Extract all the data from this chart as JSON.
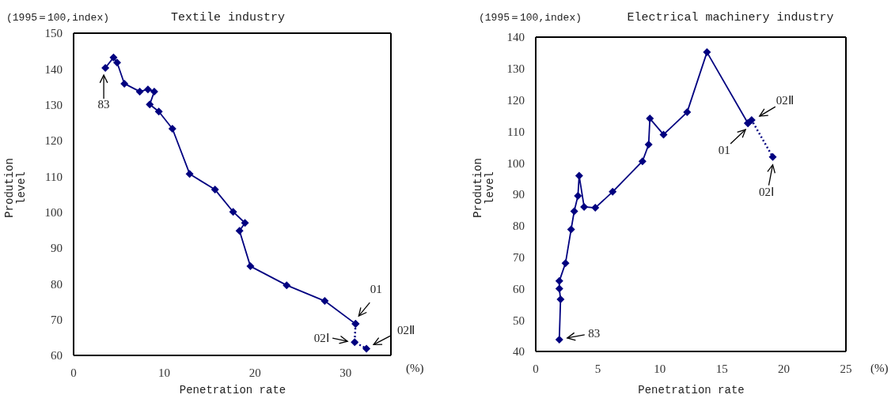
{
  "chart_data": [
    {
      "type": "line",
      "title": "Textile industry",
      "xlabel": "Penetration rate",
      "ylabel": "Prodution level",
      "xlim": [
        0,
        35
      ],
      "xticks": [
        0,
        10,
        20,
        30
      ],
      "ylim": [
        60,
        150
      ],
      "yticks": [
        60,
        70,
        80,
        90,
        100,
        110,
        120,
        130,
        140,
        150
      ],
      "marker": "diamond",
      "series": [
        {
          "color": "#000080",
          "line_style": "solid",
          "x": [
            3.5,
            4.4,
            4.8,
            5.6,
            7.3,
            8.2,
            8.9,
            8.4,
            9.4,
            10.9,
            12.8,
            15.6,
            17.6,
            18.9,
            18.3,
            19.5,
            23.5,
            27.7,
            31.1
          ],
          "values": [
            140.3,
            143.2,
            141.8,
            135.9,
            133.7,
            134.3,
            133.7,
            130.1,
            128.1,
            123.3,
            110.7,
            106.3,
            100.1,
            97.0,
            94.8,
            84.9,
            79.6,
            75.2,
            68.8
          ]
        },
        {
          "color": "#000080",
          "line_style": "dotted",
          "x": [
            31.1,
            31.0,
            32.3
          ],
          "values": [
            68.8,
            63.7,
            61.9
          ]
        }
      ],
      "annotations": [
        "(1995＝100,index)",
        "(%)",
        {
          "text": "83",
          "x": 3.5,
          "y": 140.3
        },
        {
          "text": "01",
          "x": 31.1,
          "y": 68.8
        },
        {
          "text": "02Ⅰ",
          "x": 31.0,
          "y": 63.7
        },
        {
          "text": "02Ⅱ",
          "x": 32.3,
          "y": 61.9
        }
      ]
    },
    {
      "type": "line",
      "title": "Electrical machinery industry",
      "xlabel": "Penetration rate",
      "ylabel": "Prodution level",
      "xlim": [
        0,
        25
      ],
      "xticks": [
        0,
        5,
        10,
        15,
        20,
        25
      ],
      "ylim": [
        40,
        140
      ],
      "yticks": [
        40,
        50,
        60,
        70,
        80,
        90,
        100,
        110,
        120,
        130,
        140
      ],
      "marker": "diamond",
      "series": [
        {
          "color": "#000080",
          "line_style": "solid",
          "x": [
            1.9,
            2.0,
            1.9,
            1.9,
            2.4,
            2.85,
            3.1,
            3.4,
            3.5,
            3.9,
            4.8,
            6.2,
            8.6,
            9.1,
            9.2,
            10.3,
            12.2,
            13.8,
            17.1
          ],
          "values": [
            43.8,
            56.6,
            60.0,
            62.4,
            68.1,
            78.8,
            84.6,
            89.5,
            95.9,
            86.0,
            85.7,
            90.8,
            100.5,
            105.8,
            114.1,
            109.0,
            116.1,
            135.2,
            112.6
          ]
        },
        {
          "color": "#000080",
          "line_style": "dotted",
          "x": [
            17.1,
            17.4,
            19.1
          ],
          "values": [
            112.6,
            113.6,
            101.9
          ]
        }
      ],
      "annotations": [
        "(1995＝100,index)",
        "(%)",
        {
          "text": "83",
          "x": 1.9,
          "y": 43.8
        },
        {
          "text": "01",
          "x": 17.1,
          "y": 112.6
        },
        {
          "text": "02Ⅱ",
          "x": 17.4,
          "y": 113.6
        },
        {
          "text": "02Ⅰ",
          "x": 19.1,
          "y": 101.9
        }
      ]
    }
  ]
}
